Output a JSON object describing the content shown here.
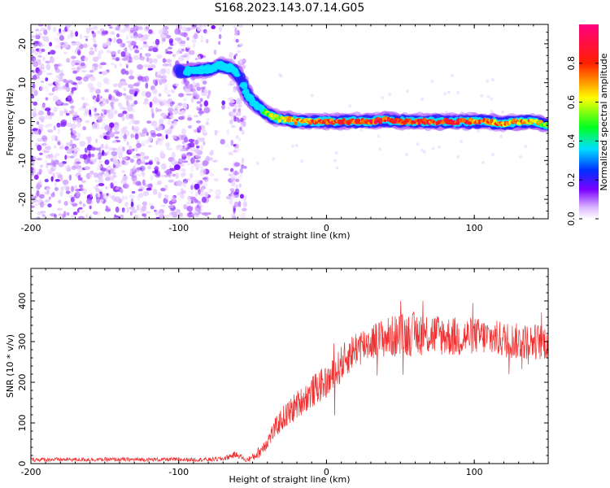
{
  "title": "S168.2023.143.07.14.G05",
  "chart_data": [
    {
      "type": "heatmap",
      "title": "S168.2023.143.07.14.G05",
      "xlabel": "Height of straight line (km)",
      "ylabel": "Frequency (Hz)",
      "xlim": [
        -200,
        150
      ],
      "ylim": [
        -25,
        25
      ],
      "xticks": [
        -200,
        -100,
        0,
        100
      ],
      "xtick_labels": [
        "-200",
        "-100",
        "0",
        "100"
      ],
      "yticks": [
        -20,
        -10,
        0,
        10,
        20
      ],
      "ytick_labels": [
        "-20",
        "-10",
        "0",
        "10",
        "20"
      ],
      "colorbar": {
        "label": "Normalized spectral amplitude",
        "range": [
          0,
          1
        ],
        "ticks": [
          0.0,
          0.2,
          0.4,
          0.6,
          0.8
        ],
        "tick_labels": [
          "0.0",
          "0.2",
          "0.4",
          "0.6",
          "0.8"
        ],
        "colormap": "rainbow (white-violet-blue-cyan-green-yellow-red-magenta)"
      },
      "ridge": {
        "x": [
          -100,
          -90,
          -80,
          -72,
          -66,
          -62,
          -58,
          -55,
          -52,
          -48,
          -45,
          -42,
          -38,
          -34,
          -30,
          -25,
          -20,
          -10,
          0,
          10,
          20,
          30,
          40,
          50,
          60,
          70,
          80,
          90,
          100,
          110,
          120,
          130,
          140,
          150
        ],
        "y": [
          13,
          13,
          13.5,
          14.5,
          14,
          13,
          11,
          8,
          6,
          4.5,
          3.5,
          2.5,
          1.5,
          1,
          0.5,
          0.5,
          0,
          0,
          0,
          0,
          0,
          0,
          0.5,
          0,
          0,
          0,
          0,
          0,
          0,
          0,
          -0.5,
          0,
          0,
          -1
        ],
        "amplitude": [
          0.3,
          0.35,
          0.4,
          0.45,
          0.4,
          0.35,
          0.3,
          0.35,
          0.4,
          0.45,
          0.45,
          0.5,
          0.55,
          0.6,
          0.6,
          0.65,
          0.75,
          0.8,
          0.85,
          0.85,
          0.85,
          0.85,
          0.85,
          0.85,
          0.85,
          0.8,
          0.85,
          0.85,
          0.8,
          0.75,
          0.7,
          0.7,
          0.7,
          0.5
        ]
      },
      "noise_region": [
        -200,
        -55
      ],
      "grid": false
    },
    {
      "type": "line",
      "xlabel": "Height of straight line (km)",
      "ylabel": "SNR (10 * v/v)",
      "xlim": [
        -200,
        150
      ],
      "ylim": [
        0,
        480
      ],
      "xticks": [
        -200,
        -100,
        0,
        100
      ],
      "xtick_labels": [
        "-200",
        "-100",
        "0",
        "100"
      ],
      "yticks": [
        0,
        100,
        200,
        300,
        400
      ],
      "ytick_labels": [
        "0",
        "100",
        "200",
        "300",
        "400"
      ],
      "color": "#ef3030",
      "series": [
        {
          "x": [
            -200,
            -180,
            -160,
            -140,
            -120,
            -100,
            -80,
            -70,
            -62,
            -58,
            -55,
            -50,
            -45,
            -40,
            -35,
            -30,
            -25,
            -20,
            -15,
            -10,
            -5,
            0,
            5,
            10,
            15,
            20,
            30,
            40,
            50,
            60,
            70,
            80,
            90,
            100,
            110,
            120,
            130,
            140,
            150
          ],
          "y": [
            10,
            10,
            10,
            10,
            10,
            10,
            10,
            12,
            22,
            18,
            8,
            15,
            30,
            55,
            85,
            110,
            125,
            145,
            160,
            175,
            190,
            200,
            215,
            245,
            265,
            285,
            300,
            310,
            315,
            320,
            320,
            315,
            310,
            315,
            310,
            305,
            300,
            300,
            300
          ],
          "spread": [
            5,
            5,
            5,
            5,
            5,
            5,
            5,
            6,
            8,
            6,
            5,
            10,
            15,
            20,
            25,
            30,
            35,
            35,
            35,
            40,
            40,
            40,
            45,
            45,
            45,
            45,
            45,
            50,
            55,
            55,
            55,
            50,
            50,
            45,
            45,
            45,
            45,
            45,
            45
          ]
        }
      ],
      "grid": false
    }
  ]
}
